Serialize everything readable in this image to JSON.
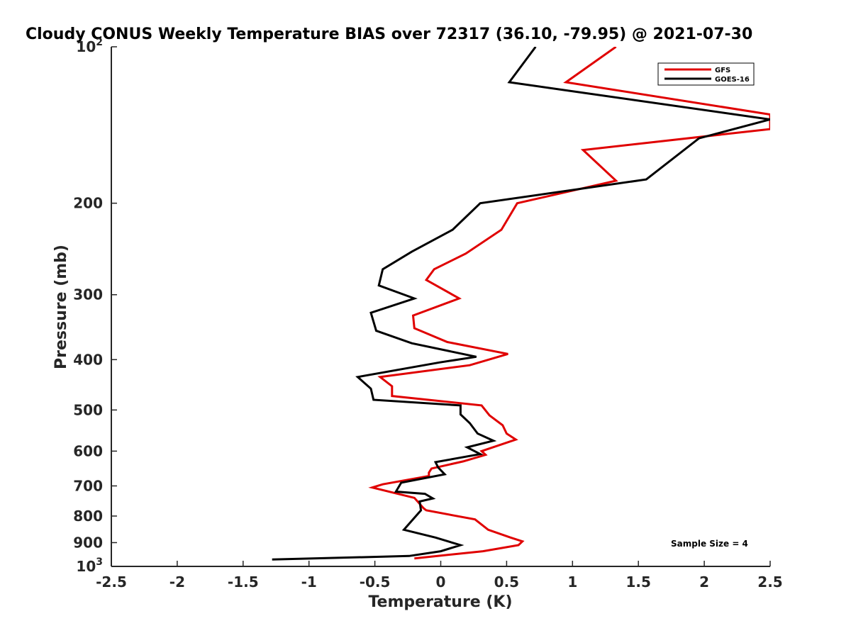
{
  "chart_data": {
    "type": "line",
    "title": "Cloudy CONUS Weekly Temperature BIAS over 72317 (36.10, -79.95) @ 2021-07-30",
    "xlabel": "Temperature (K)",
    "ylabel": "Pressure (mb)",
    "xlim": [
      -2.5,
      2.5
    ],
    "ylim": [
      100,
      1000
    ],
    "yscale": "log",
    "y_reversed": true,
    "x_ticks": [
      "-2.5",
      "-2",
      "-1.5",
      "-1",
      "-0.5",
      "0",
      "0.5",
      "1",
      "1.5",
      "2",
      "2.5"
    ],
    "y_ticks": [
      {
        "value": 100,
        "base": "10",
        "exp": "2"
      },
      {
        "value": 200,
        "label": "200"
      },
      {
        "value": 300,
        "label": "300"
      },
      {
        "value": 400,
        "label": "400"
      },
      {
        "value": 500,
        "label": "500"
      },
      {
        "value": 600,
        "label": "600"
      },
      {
        "value": 700,
        "label": "700"
      },
      {
        "value": 800,
        "label": "800"
      },
      {
        "value": 900,
        "label": "900"
      },
      {
        "value": 1000,
        "base": "10",
        "exp": "3"
      }
    ],
    "legend_position": "top-right",
    "annotation": "Sample Size = 4",
    "series": [
      {
        "name": "GFS",
        "color": "#e00000",
        "points": [
          [
            1.33,
            100
          ],
          [
            0.95,
            117
          ],
          [
            2.5,
            135
          ],
          [
            2.5,
            144
          ],
          [
            1.08,
            158
          ],
          [
            1.33,
            181
          ],
          [
            0.58,
            200
          ],
          [
            0.46,
            225
          ],
          [
            0.19,
            250
          ],
          [
            -0.05,
            268
          ],
          [
            -0.11,
            281
          ],
          [
            0.14,
            305
          ],
          [
            -0.21,
            329
          ],
          [
            -0.2,
            348
          ],
          [
            0.05,
            370
          ],
          [
            0.51,
            390
          ],
          [
            0.22,
            410
          ],
          [
            -0.46,
            432
          ],
          [
            -0.37,
            450
          ],
          [
            -0.37,
            470
          ],
          [
            0.31,
            490
          ],
          [
            0.37,
            512
          ],
          [
            0.47,
            535
          ],
          [
            0.5,
            555
          ],
          [
            0.57,
            570
          ],
          [
            0.31,
            600
          ],
          [
            0.34,
            610
          ],
          [
            0.17,
            628
          ],
          [
            -0.07,
            648
          ],
          [
            -0.09,
            660
          ],
          [
            -0.09,
            670
          ],
          [
            -0.44,
            695
          ],
          [
            -0.52,
            705
          ],
          [
            -0.2,
            738
          ],
          [
            -0.16,
            758
          ],
          [
            -0.13,
            773
          ],
          [
            -0.11,
            780
          ],
          [
            0.26,
            812
          ],
          [
            0.36,
            850
          ],
          [
            0.53,
            880
          ],
          [
            0.62,
            895
          ],
          [
            0.59,
            910
          ],
          [
            0.32,
            935
          ],
          [
            -0.2,
            965
          ]
        ]
      },
      {
        "name": "GOES-16",
        "color": "#000000",
        "points": [
          [
            0.72,
            100
          ],
          [
            0.52,
            117
          ],
          [
            2.5,
            138
          ],
          [
            1.96,
            150
          ],
          [
            1.56,
            180
          ],
          [
            0.3,
            200
          ],
          [
            0.09,
            225
          ],
          [
            -0.22,
            248
          ],
          [
            -0.44,
            268
          ],
          [
            -0.47,
            288
          ],
          [
            -0.2,
            305
          ],
          [
            -0.53,
            325
          ],
          [
            -0.49,
            352
          ],
          [
            -0.22,
            372
          ],
          [
            0.27,
            395
          ],
          [
            -0.01,
            405
          ],
          [
            -0.63,
            432
          ],
          [
            -0.53,
            455
          ],
          [
            -0.51,
            478
          ],
          [
            0.15,
            490
          ],
          [
            0.15,
            510
          ],
          [
            0.22,
            530
          ],
          [
            0.28,
            555
          ],
          [
            0.4,
            573
          ],
          [
            0.2,
            590
          ],
          [
            0.3,
            608
          ],
          [
            -0.04,
            630
          ],
          [
            -0.02,
            645
          ],
          [
            0.03,
            665
          ],
          [
            -0.3,
            690
          ],
          [
            -0.34,
            718
          ],
          [
            -0.12,
            725
          ],
          [
            -0.06,
            740
          ],
          [
            -0.16,
            750
          ],
          [
            -0.15,
            780
          ],
          [
            -0.28,
            850
          ],
          [
            -0.04,
            880
          ],
          [
            0.15,
            910
          ],
          [
            0.0,
            935
          ],
          [
            -0.24,
            955
          ],
          [
            -1.28,
            970
          ]
        ]
      }
    ]
  }
}
